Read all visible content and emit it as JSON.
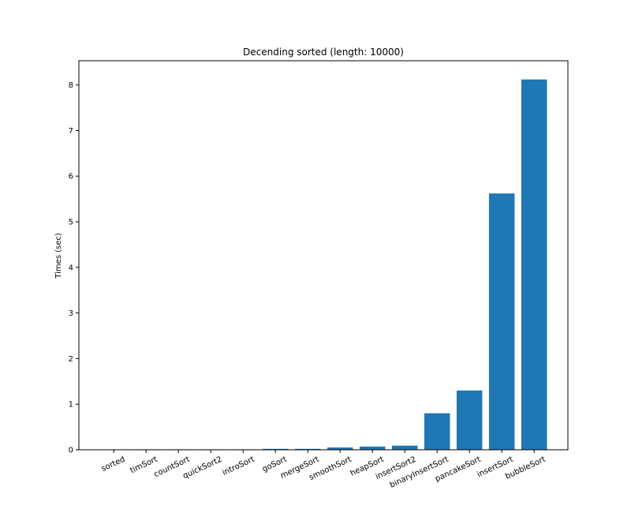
{
  "chart_data": {
    "type": "bar",
    "title": "Decending sorted (length: 10000)",
    "xlabel": "",
    "ylabel": "Times (sec)",
    "categories": [
      "sorted",
      "timSort",
      "countSort",
      "quickSort2",
      "introSort",
      "goSort",
      "mergeSort",
      "smoothSort",
      "heapSort",
      "insertSort2",
      "binaryInsertSort",
      "pancakeSort",
      "insertSort",
      "bubbleSort"
    ],
    "values": [
      0.0,
      0.01,
      0.01,
      0.01,
      0.01,
      0.02,
      0.02,
      0.05,
      0.07,
      0.09,
      0.8,
      1.3,
      5.62,
      8.12
    ],
    "ylim": [
      0,
      8.53
    ],
    "yticks": [
      "0",
      "1",
      "2",
      "3",
      "4",
      "5",
      "6",
      "7",
      "8"
    ],
    "bar_color": "#1f77b4",
    "grid": false,
    "legend": "none"
  }
}
